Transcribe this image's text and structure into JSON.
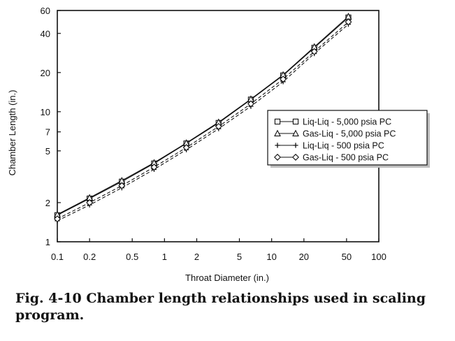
{
  "caption": "Fig. 4-10 Chamber length relationships used in scaling program.",
  "chart_data": {
    "type": "line",
    "xlabel": "Throat Diameter (in.)",
    "ylabel": "Chamber Length (in.)",
    "x_scale": "log",
    "y_scale": "log",
    "xlim": [
      0.1,
      100
    ],
    "ylim": [
      1,
      60
    ],
    "x_ticks": [
      0.1,
      0.2,
      0.5,
      1,
      2,
      5,
      10,
      20,
      50,
      100
    ],
    "x_tick_labels": [
      "0.1",
      "0.2",
      "0.5",
      "1",
      "2",
      "5",
      "10",
      "20",
      "50",
      "100"
    ],
    "y_ticks": [
      1,
      2,
      5,
      7,
      10,
      20,
      40,
      60
    ],
    "y_tick_labels": [
      "1",
      "2",
      "5",
      "7",
      "10",
      "20",
      "40",
      "60"
    ],
    "grid": false,
    "legend_position": "right",
    "series": [
      {
        "name": "Liq-Liq - 5,000 psia PC",
        "marker": "square",
        "dash": "",
        "x": [
          0.1,
          0.2,
          0.4,
          0.8,
          1.6,
          3.2,
          6.4,
          12.8,
          25,
          52
        ],
        "y": [
          1.6,
          2.15,
          2.9,
          4.0,
          5.7,
          8.2,
          12.4,
          19.0,
          31,
          53
        ]
      },
      {
        "name": "Gas-Liq - 5,000 psia PC",
        "marker": "triangle",
        "dash": "",
        "x": [
          0.1,
          0.2,
          0.4,
          0.8,
          1.6,
          3.2,
          6.4,
          12.8,
          25,
          52
        ],
        "y": [
          1.62,
          2.18,
          2.95,
          4.05,
          5.75,
          8.3,
          12.5,
          19.2,
          31.5,
          54
        ]
      },
      {
        "name": "Liq-Liq - 500 psia PC",
        "marker": "plus",
        "dash": "5,3",
        "x": [
          0.1,
          0.2,
          0.4,
          0.8,
          1.6,
          3.2,
          6.4,
          12.8,
          25,
          52
        ],
        "y": [
          1.45,
          1.92,
          2.6,
          3.6,
          5.1,
          7.4,
          11.0,
          17.0,
          28,
          47
        ]
      },
      {
        "name": "Gas-Liq - 500 psia PC",
        "marker": "diamond",
        "dash": "5,3",
        "x": [
          0.1,
          0.2,
          0.4,
          0.8,
          1.6,
          3.2,
          6.4,
          12.8,
          25,
          52
        ],
        "y": [
          1.5,
          2.0,
          2.7,
          3.75,
          5.3,
          7.7,
          11.5,
          17.8,
          29,
          49
        ]
      }
    ]
  }
}
